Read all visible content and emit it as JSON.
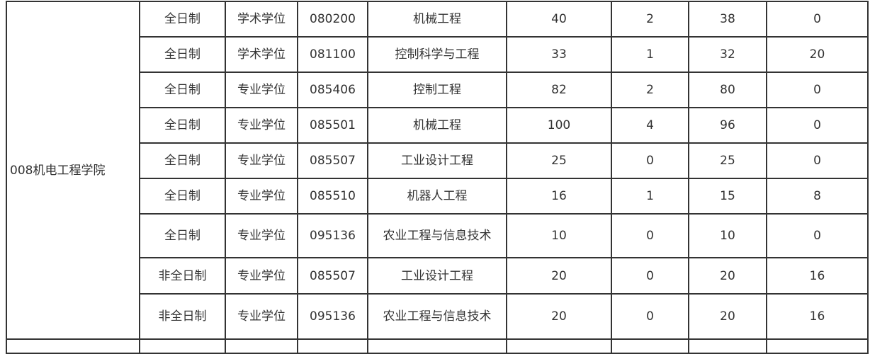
{
  "college": "008机电工程学院",
  "rows": [
    {
      "mode": "全日制",
      "degree": "学术学位",
      "code": "080200",
      "major": "机械工程",
      "c1": "40",
      "c2": "2",
      "c3": "38",
      "c4": "0"
    },
    {
      "mode": "全日制",
      "degree": "学术学位",
      "code": "081100",
      "major": "控制科学与工程",
      "c1": "33",
      "c2": "1",
      "c3": "32",
      "c4": "20"
    },
    {
      "mode": "全日制",
      "degree": "专业学位",
      "code": "085406",
      "major": "控制工程",
      "c1": "82",
      "c2": "2",
      "c3": "80",
      "c4": "0"
    },
    {
      "mode": "全日制",
      "degree": "专业学位",
      "code": "085501",
      "major": "机械工程",
      "c1": "100",
      "c2": "4",
      "c3": "96",
      "c4": "0"
    },
    {
      "mode": "全日制",
      "degree": "专业学位",
      "code": "085507",
      "major": "工业设计工程",
      "c1": "25",
      "c2": "0",
      "c3": "25",
      "c4": "0"
    },
    {
      "mode": "全日制",
      "degree": "专业学位",
      "code": "085510",
      "major": "机器人工程",
      "c1": "16",
      "c2": "1",
      "c3": "15",
      "c4": "8"
    },
    {
      "mode": "全日制",
      "degree": "专业学位",
      "code": "095136",
      "major": "农业工程与信息技术",
      "c1": "10",
      "c2": "0",
      "c3": "10",
      "c4": "0"
    },
    {
      "mode": "非全日制",
      "degree": "专业学位",
      "code": "085507",
      "major": "工业设计工程",
      "c1": "20",
      "c2": "0",
      "c3": "20",
      "c4": "16"
    },
    {
      "mode": "非全日制",
      "degree": "专业学位",
      "code": "095136",
      "major": "农业工程与信息技术",
      "c1": "20",
      "c2": "0",
      "c3": "20",
      "c4": "16"
    }
  ]
}
